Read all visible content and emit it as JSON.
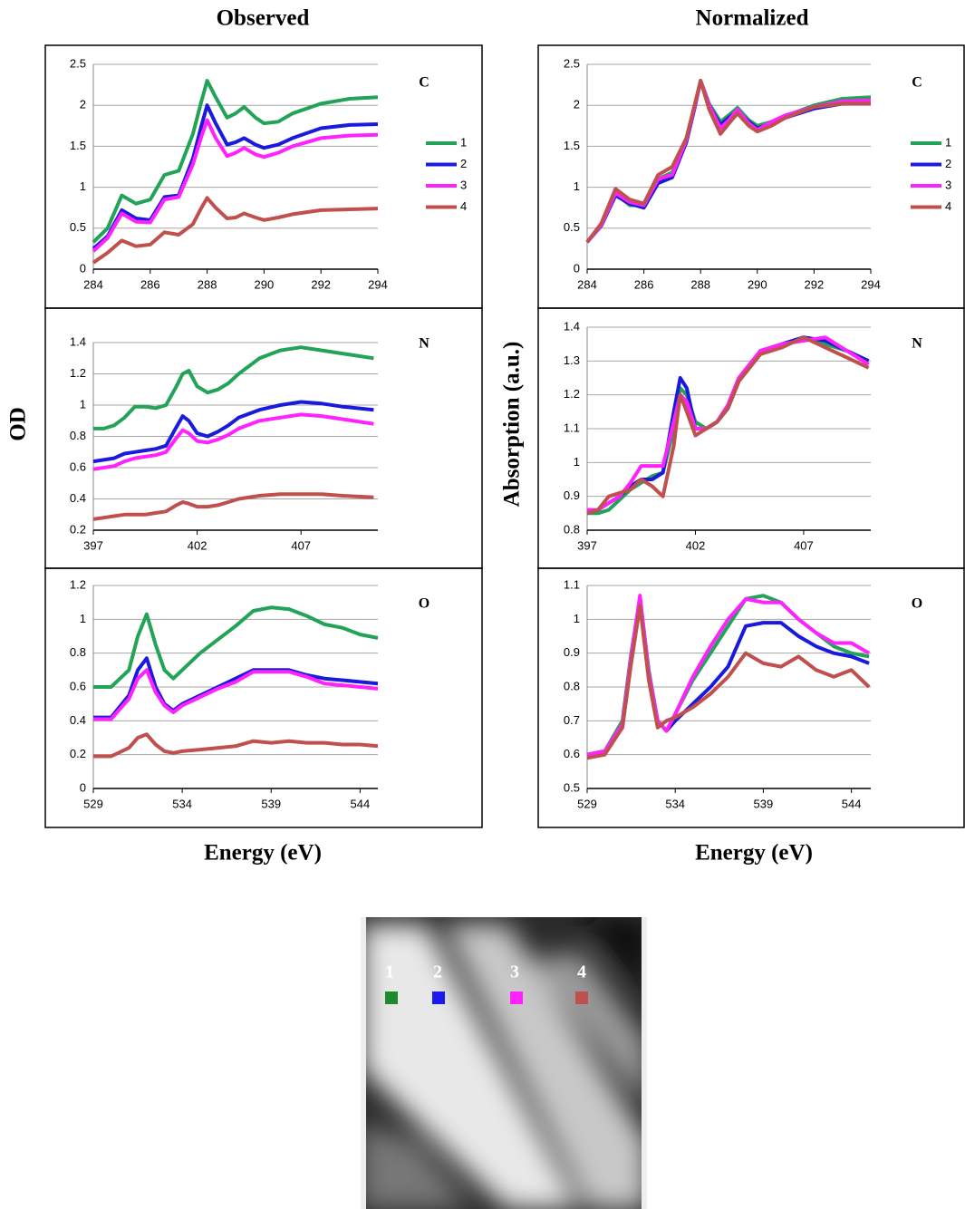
{
  "column_titles": [
    "Observed",
    "Normalized"
  ],
  "y_axis_titles": [
    "OD",
    "Absorption  (a.u.)"
  ],
  "x_axis_titles": [
    "Energy  (eV)",
    "Energy  (eV)"
  ],
  "image": {
    "labels": [
      "1",
      "2",
      "3",
      "4"
    ]
  },
  "chart_data": [
    {
      "type": "line",
      "annotation": "C",
      "legend": "right",
      "grid": true,
      "x": [
        284,
        284.5,
        285,
        285.5,
        286,
        286.5,
        287,
        287.5,
        287.8,
        288,
        288.3,
        288.7,
        289,
        289.3,
        289.7,
        290,
        290.5,
        291,
        292,
        293,
        294
      ],
      "xlim": [
        284,
        294
      ],
      "xticks": [
        284,
        286,
        288,
        290,
        292,
        294
      ],
      "ylim": [
        0,
        2.5
      ],
      "yticks": [
        0,
        0.5,
        1,
        1.5,
        2,
        2.5
      ],
      "series": [
        {
          "name": "1",
          "color": "#22a358",
          "values": [
            0.33,
            0.5,
            0.9,
            0.8,
            0.85,
            1.15,
            1.2,
            1.65,
            2.05,
            2.3,
            2.1,
            1.85,
            1.9,
            1.98,
            1.85,
            1.78,
            1.8,
            1.9,
            2.02,
            2.08,
            2.1
          ]
        },
        {
          "name": "2",
          "color": "#1a1adc",
          "values": [
            0.25,
            0.4,
            0.72,
            0.62,
            0.6,
            0.88,
            0.9,
            1.35,
            1.75,
            2.0,
            1.78,
            1.52,
            1.55,
            1.6,
            1.52,
            1.48,
            1.52,
            1.6,
            1.72,
            1.76,
            1.77
          ]
        },
        {
          "name": "3",
          "color": "#ff22ff",
          "values": [
            0.22,
            0.38,
            0.68,
            0.58,
            0.57,
            0.85,
            0.88,
            1.28,
            1.62,
            1.82,
            1.6,
            1.38,
            1.42,
            1.48,
            1.4,
            1.37,
            1.42,
            1.5,
            1.6,
            1.63,
            1.64
          ]
        },
        {
          "name": "4",
          "color": "#c0504d",
          "values": [
            0.08,
            0.2,
            0.35,
            0.28,
            0.3,
            0.45,
            0.42,
            0.55,
            0.75,
            0.87,
            0.75,
            0.62,
            0.63,
            0.68,
            0.63,
            0.6,
            0.63,
            0.67,
            0.72,
            0.73,
            0.74
          ]
        }
      ]
    },
    {
      "type": "line",
      "annotation": "N",
      "grid": true,
      "x": [
        397,
        397.5,
        398,
        398.5,
        399,
        399.5,
        400,
        400.5,
        401,
        401.3,
        401.6,
        402,
        402.5,
        403,
        403.5,
        404,
        405,
        406,
        407,
        408,
        409,
        410.5
      ],
      "xlim": [
        397,
        410.7
      ],
      "xticks": [
        397,
        402,
        407
      ],
      "ylim": [
        0.2,
        1.4
      ],
      "yticks": [
        0.2,
        0.4,
        0.6,
        0.8,
        1,
        1.2,
        1.4
      ],
      "series": [
        {
          "color": "#22a358",
          "values": [
            0.85,
            0.85,
            0.87,
            0.92,
            0.99,
            0.99,
            0.98,
            1.0,
            1.12,
            1.2,
            1.22,
            1.12,
            1.08,
            1.1,
            1.14,
            1.2,
            1.3,
            1.35,
            1.37,
            1.35,
            1.33,
            1.3
          ]
        },
        {
          "color": "#1a1adc",
          "values": [
            0.64,
            0.65,
            0.66,
            0.69,
            0.7,
            0.71,
            0.72,
            0.74,
            0.86,
            0.93,
            0.9,
            0.82,
            0.8,
            0.83,
            0.87,
            0.92,
            0.97,
            1.0,
            1.02,
            1.01,
            0.99,
            0.97
          ]
        },
        {
          "color": "#ff22ff",
          "values": [
            0.59,
            0.6,
            0.61,
            0.64,
            0.66,
            0.67,
            0.68,
            0.7,
            0.79,
            0.84,
            0.82,
            0.77,
            0.76,
            0.78,
            0.81,
            0.85,
            0.9,
            0.92,
            0.94,
            0.93,
            0.91,
            0.88
          ]
        },
        {
          "color": "#c0504d",
          "values": [
            0.27,
            0.28,
            0.29,
            0.3,
            0.3,
            0.3,
            0.31,
            0.32,
            0.36,
            0.38,
            0.37,
            0.35,
            0.35,
            0.36,
            0.38,
            0.4,
            0.42,
            0.43,
            0.43,
            0.43,
            0.42,
            0.41
          ]
        }
      ]
    },
    {
      "type": "line",
      "annotation": "O",
      "grid": true,
      "x": [
        529,
        530,
        531,
        531.5,
        532,
        532.5,
        533,
        533.5,
        534,
        535,
        536,
        537,
        538,
        539,
        540,
        541,
        542,
        543,
        544,
        545
      ],
      "xlim": [
        529,
        545
      ],
      "xticks": [
        529,
        534,
        539,
        544
      ],
      "ylim": [
        0,
        1.2
      ],
      "yticks": [
        0,
        0.2,
        0.4,
        0.6,
        0.8,
        1,
        1.2
      ],
      "series": [
        {
          "color": "#22a358",
          "values": [
            0.6,
            0.6,
            0.7,
            0.9,
            1.03,
            0.85,
            0.7,
            0.65,
            0.7,
            0.8,
            0.88,
            0.96,
            1.05,
            1.07,
            1.06,
            1.02,
            0.97,
            0.95,
            0.91,
            0.89
          ]
        },
        {
          "color": "#1a1adc",
          "values": [
            0.42,
            0.42,
            0.55,
            0.7,
            0.77,
            0.6,
            0.5,
            0.46,
            0.5,
            0.55,
            0.6,
            0.65,
            0.7,
            0.7,
            0.7,
            0.67,
            0.65,
            0.64,
            0.63,
            0.62
          ]
        },
        {
          "color": "#ff22ff",
          "values": [
            0.41,
            0.41,
            0.53,
            0.65,
            0.7,
            0.57,
            0.49,
            0.45,
            0.49,
            0.54,
            0.59,
            0.63,
            0.69,
            0.69,
            0.69,
            0.66,
            0.62,
            0.61,
            0.6,
            0.59
          ]
        },
        {
          "color": "#c0504d",
          "values": [
            0.19,
            0.19,
            0.24,
            0.3,
            0.32,
            0.26,
            0.22,
            0.21,
            0.22,
            0.23,
            0.24,
            0.25,
            0.28,
            0.27,
            0.28,
            0.27,
            0.27,
            0.26,
            0.26,
            0.25
          ]
        }
      ]
    },
    {
      "type": "line",
      "annotation": "C",
      "legend": "right",
      "grid": true,
      "x": [
        284,
        284.5,
        285,
        285.5,
        286,
        286.5,
        287,
        287.5,
        287.8,
        288,
        288.3,
        288.7,
        289,
        289.3,
        289.7,
        290,
        290.5,
        291,
        292,
        293,
        294
      ],
      "xlim": [
        284,
        294
      ],
      "xticks": [
        284,
        286,
        288,
        290,
        292,
        294
      ],
      "ylim": [
        0,
        2.5
      ],
      "yticks": [
        0,
        0.5,
        1,
        1.5,
        2,
        2.5
      ],
      "series": [
        {
          "name": "1",
          "color": "#22a358",
          "values": [
            0.33,
            0.55,
            0.92,
            0.78,
            0.78,
            1.1,
            1.18,
            1.6,
            2.0,
            2.3,
            2.02,
            1.8,
            1.88,
            1.97,
            1.82,
            1.75,
            1.8,
            1.87,
            2.0,
            2.08,
            2.1
          ]
        },
        {
          "name": "2",
          "color": "#1a1adc",
          "values": [
            0.33,
            0.53,
            0.9,
            0.8,
            0.75,
            1.05,
            1.12,
            1.55,
            1.98,
            2.3,
            2.0,
            1.76,
            1.85,
            1.93,
            1.8,
            1.72,
            1.78,
            1.85,
            1.96,
            2.02,
            2.04
          ]
        },
        {
          "name": "3",
          "color": "#ff22ff",
          "values": [
            0.33,
            0.54,
            0.93,
            0.82,
            0.78,
            1.1,
            1.15,
            1.58,
            2.0,
            2.3,
            2.0,
            1.72,
            1.82,
            1.95,
            1.78,
            1.7,
            1.8,
            1.88,
            1.98,
            2.05,
            2.06
          ]
        },
        {
          "name": "4",
          "color": "#c0504d",
          "values": [
            0.33,
            0.56,
            0.98,
            0.85,
            0.8,
            1.15,
            1.25,
            1.6,
            2.02,
            2.3,
            1.95,
            1.65,
            1.78,
            1.9,
            1.75,
            1.68,
            1.75,
            1.85,
            1.98,
            2.02,
            2.02
          ]
        }
      ]
    },
    {
      "type": "line",
      "annotation": "N",
      "grid": true,
      "x": [
        397,
        397.5,
        398,
        398.5,
        399,
        399.5,
        400,
        400.5,
        401,
        401.3,
        401.6,
        402,
        402.5,
        403,
        403.5,
        404,
        405,
        406,
        407,
        408,
        409,
        410
      ],
      "xlim": [
        397,
        410.1
      ],
      "xticks": [
        397,
        402,
        407
      ],
      "ylim": [
        0.8,
        1.4
      ],
      "yticks": [
        0.8,
        0.9,
        1,
        1.1,
        1.2,
        1.3,
        1.4
      ],
      "series": [
        {
          "color": "#22a358",
          "values": [
            0.85,
            0.85,
            0.86,
            0.89,
            0.92,
            0.94,
            0.96,
            0.97,
            1.1,
            1.22,
            1.2,
            1.12,
            1.1,
            1.12,
            1.16,
            1.24,
            1.32,
            1.35,
            1.37,
            1.35,
            1.33,
            1.3
          ]
        },
        {
          "color": "#1a1adc",
          "values": [
            0.85,
            0.86,
            0.88,
            0.9,
            0.93,
            0.95,
            0.95,
            0.97,
            1.15,
            1.25,
            1.22,
            1.1,
            1.1,
            1.12,
            1.16,
            1.24,
            1.33,
            1.35,
            1.37,
            1.36,
            1.33,
            1.3
          ]
        },
        {
          "color": "#ff22ff",
          "values": [
            0.86,
            0.86,
            0.88,
            0.9,
            0.94,
            0.99,
            0.99,
            0.99,
            1.12,
            1.2,
            1.18,
            1.1,
            1.1,
            1.12,
            1.17,
            1.25,
            1.33,
            1.35,
            1.36,
            1.37,
            1.33,
            1.29
          ]
        },
        {
          "color": "#c0504d",
          "values": [
            0.85,
            0.86,
            0.9,
            0.91,
            0.92,
            0.95,
            0.93,
            0.9,
            1.05,
            1.2,
            1.15,
            1.08,
            1.1,
            1.12,
            1.16,
            1.24,
            1.32,
            1.34,
            1.37,
            1.34,
            1.31,
            1.28
          ]
        }
      ]
    },
    {
      "type": "line",
      "annotation": "O",
      "grid": true,
      "x": [
        529,
        530,
        531,
        531.5,
        532,
        532.5,
        533,
        533.5,
        534,
        535,
        536,
        537,
        538,
        539,
        540,
        541,
        542,
        543,
        544,
        545
      ],
      "xlim": [
        529,
        545.1
      ],
      "xticks": [
        529,
        534,
        539,
        544
      ],
      "ylim": [
        0.5,
        1.1
      ],
      "yticks": [
        0.5,
        0.6,
        0.7,
        0.8,
        0.9,
        1,
        1.1
      ],
      "series": [
        {
          "color": "#22a358",
          "values": [
            0.6,
            0.61,
            0.7,
            0.9,
            1.06,
            0.85,
            0.7,
            0.67,
            0.72,
            0.82,
            0.9,
            0.98,
            1.06,
            1.07,
            1.05,
            1.0,
            0.96,
            0.92,
            0.9,
            0.89
          ]
        },
        {
          "color": "#1a1adc",
          "values": [
            0.6,
            0.61,
            0.68,
            0.88,
            1.05,
            0.83,
            0.7,
            0.67,
            0.7,
            0.75,
            0.8,
            0.86,
            0.98,
            0.99,
            0.99,
            0.95,
            0.92,
            0.9,
            0.89,
            0.87
          ]
        },
        {
          "color": "#ff22ff",
          "values": [
            0.6,
            0.61,
            0.69,
            0.89,
            1.07,
            0.84,
            0.7,
            0.67,
            0.72,
            0.83,
            0.92,
            1.0,
            1.06,
            1.05,
            1.05,
            1.0,
            0.96,
            0.93,
            0.93,
            0.9
          ]
        },
        {
          "color": "#c0504d",
          "values": [
            0.59,
            0.6,
            0.68,
            0.87,
            1.04,
            0.82,
            0.68,
            0.7,
            0.71,
            0.74,
            0.78,
            0.83,
            0.9,
            0.87,
            0.86,
            0.89,
            0.85,
            0.83,
            0.85,
            0.8
          ]
        }
      ]
    }
  ]
}
